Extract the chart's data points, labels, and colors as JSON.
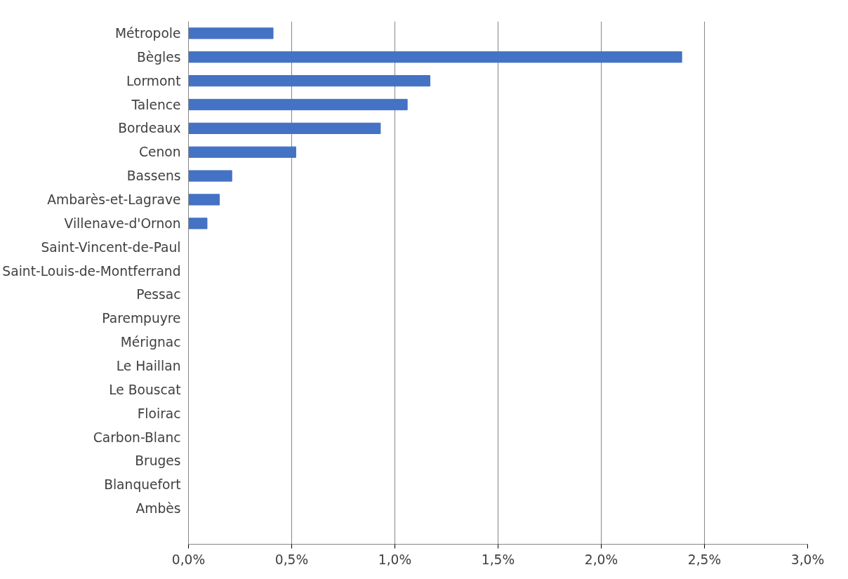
{
  "chart_data": {
    "type": "bar",
    "orientation": "horizontal",
    "categories": [
      "Métropole",
      "Bègles",
      "Lormont",
      "Talence",
      "Bordeaux",
      "Cenon",
      "Bassens",
      "Ambarès-et-Lagrave",
      "Villenave-d'Ornon",
      "Saint-Vincent-de-Paul",
      "Saint-Louis-de-Montferrand",
      "Pessac",
      "Parempuyre",
      "Mérignac",
      "Le Haillan",
      "Le Bouscat",
      "Floirac",
      "Carbon-Blanc",
      "Bruges",
      "Blanquefort",
      "Ambès"
    ],
    "values": [
      0.41,
      2.39,
      1.17,
      1.06,
      0.93,
      0.52,
      0.21,
      0.15,
      0.09,
      0,
      0,
      0,
      0,
      0,
      0,
      0,
      0,
      0,
      0,
      0,
      0
    ],
    "color": "#4472c4",
    "xlim": [
      0,
      3
    ],
    "xticks": [
      {
        "value": 0,
        "label": "0,0%"
      },
      {
        "value": 0.5,
        "label": "0,5%"
      },
      {
        "value": 1,
        "label": "1,0%"
      },
      {
        "value": 1.5,
        "label": "1,5%"
      },
      {
        "value": 2,
        "label": "2,0%"
      },
      {
        "value": 2.5,
        "label": "2,5%"
      },
      {
        "value": 3,
        "label": "3,0%"
      }
    ],
    "grid": "x"
  }
}
